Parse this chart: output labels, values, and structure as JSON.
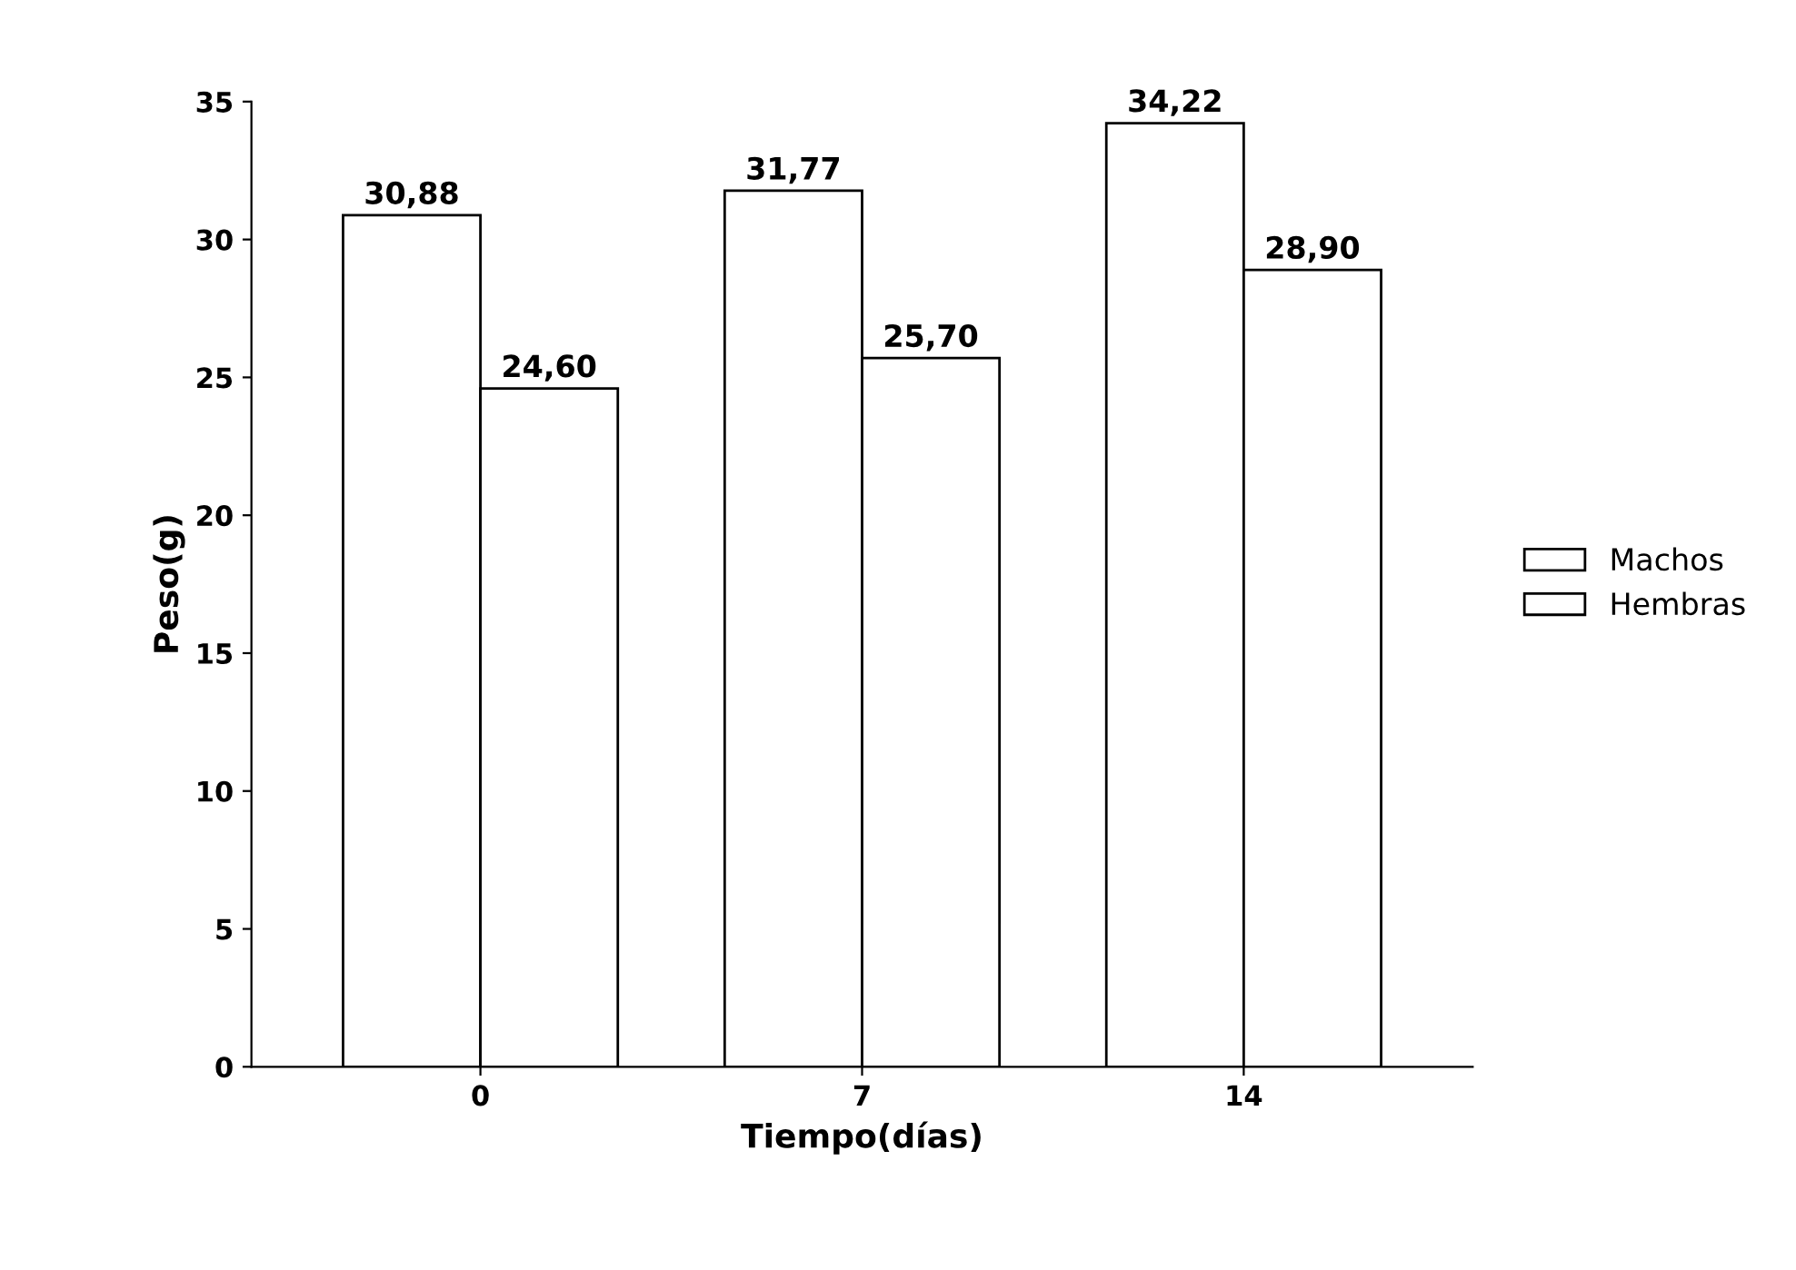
{
  "chart_data": {
    "type": "bar",
    "xlabel": "Tiempo(días)",
    "ylabel": "Peso(g)",
    "categories": [
      "0",
      "7",
      "14"
    ],
    "series": [
      {
        "name": "Machos",
        "color": "#ffffff",
        "values": [
          30.88,
          31.77,
          34.22
        ],
        "value_labels": [
          "30,88",
          "31,77",
          "34,22"
        ]
      },
      {
        "name": "Hembras",
        "color": "#ffffff",
        "values": [
          24.6,
          25.7,
          28.9
        ],
        "value_labels": [
          "24,60",
          "25,70",
          "28,90"
        ]
      }
    ],
    "ylim": [
      0,
      35
    ],
    "yticks": [
      0,
      5,
      10,
      15,
      20,
      25,
      30,
      35
    ],
    "grid": false,
    "legend": "right"
  }
}
